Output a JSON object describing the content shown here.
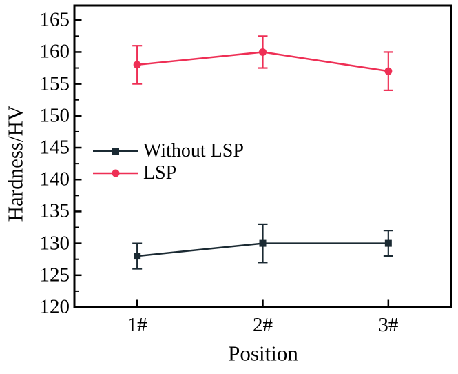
{
  "chart_data": {
    "type": "line",
    "title": "",
    "xlabel": "Position",
    "ylabel": "Hardness/HV",
    "categories": [
      "1#",
      "2#",
      "3#"
    ],
    "series": [
      {
        "name": "Without LSP",
        "color": "#1b2a33",
        "marker": "square",
        "values": [
          128,
          130,
          130
        ],
        "errors": [
          2,
          3,
          2
        ]
      },
      {
        "name": "LSP",
        "color": "#ee2f55",
        "marker": "circle",
        "values": [
          158,
          160,
          157
        ],
        "errors": [
          3,
          2.5,
          3
        ]
      }
    ],
    "ylim": [
      120,
      167.3
    ],
    "yticks": [
      165,
      160,
      155,
      150,
      145,
      140,
      135,
      130,
      125,
      120
    ],
    "y_minor_step": 2.5,
    "grid": false,
    "legend_position": "inside-left",
    "axis_color": "#000000",
    "background_color": "#ffffff"
  }
}
